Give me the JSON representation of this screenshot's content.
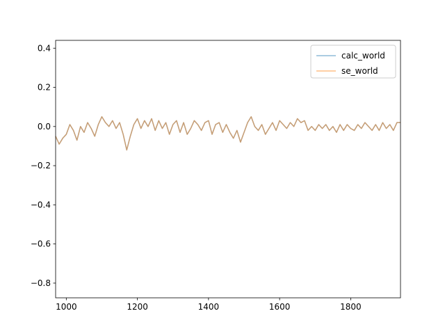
{
  "chart_data": {
    "type": "line",
    "title": "",
    "xlabel": "",
    "ylabel": "",
    "xlim": [
      970,
      1940
    ],
    "ylim": [
      -0.875,
      0.44
    ],
    "xticks": [
      1000,
      1200,
      1400,
      1600,
      1800
    ],
    "xtick_labels": [
      "1000",
      "1200",
      "1400",
      "1600",
      "1800"
    ],
    "yticks": [
      -0.8,
      -0.6,
      -0.4,
      -0.2,
      0.0,
      0.2,
      0.4
    ],
    "ytick_labels": [
      "−0.8",
      "−0.6",
      "−0.4",
      "−0.2",
      "0.0",
      "0.2",
      "0.4"
    ],
    "grid": false,
    "legend_position": "upper right",
    "x": [
      970,
      980,
      990,
      1000,
      1010,
      1020,
      1030,
      1040,
      1050,
      1060,
      1070,
      1080,
      1090,
      1100,
      1110,
      1120,
      1130,
      1140,
      1150,
      1160,
      1165,
      1170,
      1180,
      1190,
      1200,
      1210,
      1220,
      1230,
      1240,
      1250,
      1260,
      1270,
      1280,
      1290,
      1300,
      1310,
      1320,
      1330,
      1340,
      1350,
      1360,
      1370,
      1380,
      1390,
      1400,
      1410,
      1420,
      1430,
      1440,
      1450,
      1460,
      1470,
      1480,
      1490,
      1500,
      1510,
      1520,
      1530,
      1540,
      1550,
      1560,
      1570,
      1580,
      1590,
      1600,
      1610,
      1620,
      1630,
      1640,
      1650,
      1660,
      1670,
      1680,
      1690,
      1700,
      1710,
      1720,
      1730,
      1740,
      1750,
      1760,
      1770,
      1780,
      1790,
      1800,
      1810,
      1820,
      1830,
      1840,
      1850,
      1860,
      1870,
      1880,
      1890,
      1900,
      1910,
      1920,
      1930,
      1940
    ],
    "series": [
      {
        "name": "calc_world",
        "color": "#1f77b4",
        "opacity": 0.5,
        "values": [
          -0.05,
          -0.09,
          -0.06,
          -0.04,
          0.01,
          -0.02,
          -0.07,
          0.0,
          -0.03,
          0.02,
          -0.01,
          -0.05,
          0.01,
          0.05,
          0.02,
          0.0,
          0.03,
          -0.01,
          0.02,
          -0.04,
          -0.08,
          -0.12,
          -0.05,
          0.01,
          0.04,
          -0.01,
          0.03,
          0.0,
          0.04,
          -0.02,
          0.03,
          -0.01,
          0.02,
          -0.04,
          0.01,
          0.03,
          -0.03,
          0.02,
          -0.04,
          -0.01,
          0.03,
          0.01,
          -0.02,
          0.02,
          0.03,
          -0.04,
          0.01,
          0.02,
          -0.03,
          0.01,
          -0.03,
          -0.06,
          -0.02,
          -0.08,
          -0.03,
          0.02,
          0.05,
          0.0,
          -0.02,
          0.01,
          -0.04,
          -0.01,
          0.02,
          -0.02,
          0.03,
          0.01,
          -0.01,
          0.02,
          0.0,
          0.04,
          0.02,
          0.03,
          -0.02,
          0.0,
          -0.02,
          0.01,
          -0.01,
          0.01,
          -0.02,
          0.0,
          -0.03,
          0.01,
          -0.02,
          0.01,
          -0.01,
          -0.02,
          0.01,
          -0.01,
          0.02,
          0.0,
          -0.02,
          0.01,
          -0.02,
          0.02,
          -0.01,
          0.01,
          -0.02,
          0.02,
          0.02
        ]
      },
      {
        "name": "se_world",
        "color": "#ff7f0e",
        "opacity": 0.5,
        "values": [
          -0.05,
          -0.09,
          -0.06,
          -0.04,
          0.01,
          -0.02,
          -0.07,
          0.0,
          -0.03,
          0.02,
          -0.01,
          -0.05,
          0.01,
          0.05,
          0.02,
          0.0,
          0.03,
          -0.01,
          0.02,
          -0.04,
          -0.08,
          -0.12,
          -0.05,
          0.01,
          0.04,
          -0.01,
          0.03,
          0.0,
          0.04,
          -0.02,
          0.03,
          -0.01,
          0.02,
          -0.04,
          0.01,
          0.03,
          -0.03,
          0.02,
          -0.04,
          -0.01,
          0.03,
          0.01,
          -0.02,
          0.02,
          0.03,
          -0.04,
          0.01,
          0.02,
          -0.03,
          0.01,
          -0.03,
          -0.06,
          -0.02,
          -0.08,
          -0.03,
          0.02,
          0.05,
          0.0,
          -0.02,
          0.01,
          -0.04,
          -0.01,
          0.02,
          -0.02,
          0.03,
          0.01,
          -0.01,
          0.02,
          0.0,
          0.04,
          0.02,
          0.03,
          -0.02,
          0.0,
          -0.02,
          0.01,
          -0.01,
          0.01,
          -0.02,
          0.0,
          -0.03,
          0.01,
          -0.02,
          0.01,
          -0.01,
          -0.02,
          0.01,
          -0.01,
          0.02,
          0.0,
          -0.02,
          0.01,
          -0.02,
          0.02,
          -0.01,
          0.01,
          -0.02,
          0.02,
          0.02
        ]
      }
    ]
  }
}
